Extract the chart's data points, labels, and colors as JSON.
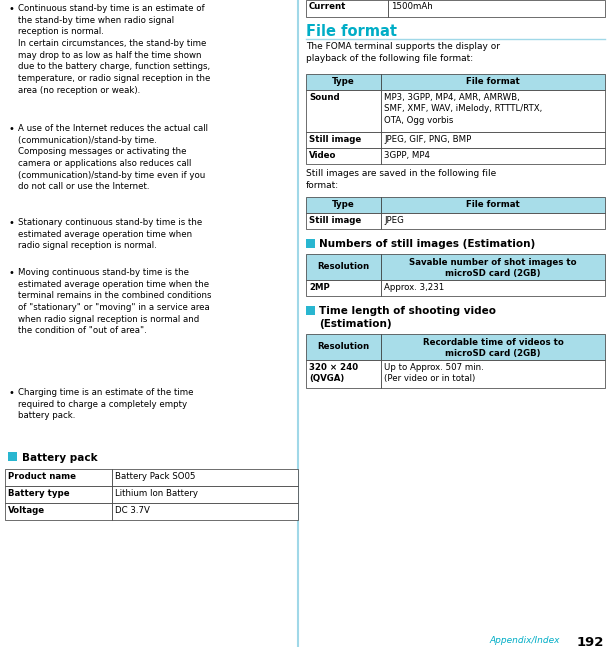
{
  "bg_color": "#ffffff",
  "cyan": "#29b6d0",
  "table_header_bg": "#a8dde9",
  "cyan_title_color": "#00adc6",
  "separator_color": "#a0d8e8",
  "left_bullets": [
    "Continuous stand-by time is an estimate of\nthe stand-by time when radio signal\nreception is normal.\nIn certain circumstances, the stand-by time\nmay drop to as low as half the time shown\ndue to the battery charge, function settings,\ntemperature, or radio signal reception in the\narea (no reception or weak).",
    "A use of the Internet reduces the actual call\n(communication)/stand-by time.\nComposing messages or activating the\ncamera or applications also reduces call\n(communication)/stand-by time even if you\ndo not call or use the Internet.",
    "Stationary continuous stand-by time is the\nestimated average operation time when\nradio signal reception is normal.",
    "Moving continuous stand-by time is the\nestimated average operation time when the\nterminal remains in the combined conditions\nof \"stationary\" or \"moving\" in a service area\nwhen radio signal reception is normal and\nthe condition of \"out of area\".",
    "Charging time is an estimate of the time\nrequired to charge a completely empty\nbattery pack."
  ],
  "battery_pack_title": "Battery pack",
  "battery_table_rows": [
    [
      "Product name",
      "Battery Pack SO05"
    ],
    [
      "Battery type",
      "Lithium Ion Battery"
    ],
    [
      "Voltage",
      "DC 3.7V"
    ]
  ],
  "current_row": [
    "Current",
    "1500mAh"
  ],
  "file_format_title": "File format",
  "file_format_intro": "The FOMA terminal supports the display or\nplayback of the following file format:",
  "ft1_headers": [
    "Type",
    "File format"
  ],
  "ft1_rows": [
    [
      "Sound",
      "MP3, 3GPP, MP4, AMR, AMRWB,\nSMF, XMF, WAV, iMelody, RTTTL/RTX,\nOTA, Ogg vorbis"
    ],
    [
      "Still image",
      "JPEG, GIF, PNG, BMP"
    ],
    [
      "Video",
      "3GPP, MP4"
    ]
  ],
  "file_format_middle_text": "Still images are saved in the following file\nformat:",
  "ft2_headers": [
    "Type",
    "File format"
  ],
  "ft2_rows": [
    [
      "Still image",
      "JPEG"
    ]
  ],
  "still_images_title": "Numbers of still images (Estimation)",
  "si_headers": [
    "Resolution",
    "Savable number of shot images to\nmicroSD card (2GB)"
  ],
  "si_rows": [
    [
      "2MP",
      "Approx. 3,231"
    ]
  ],
  "video_title": "Time length of shooting video\n(Estimation)",
  "vt_headers": [
    "Resolution",
    "Recordable time of videos to\nmicroSD card (2GB)"
  ],
  "vt_rows": [
    [
      "320 × 240\n(QVGA)",
      "Up to Approx. 507 min.\n(Per video or in total)"
    ]
  ],
  "appendix_text": "Appendix/Index",
  "page_number": "192",
  "fig_w": 6.1,
  "fig_h": 6.47,
  "dpi": 100
}
